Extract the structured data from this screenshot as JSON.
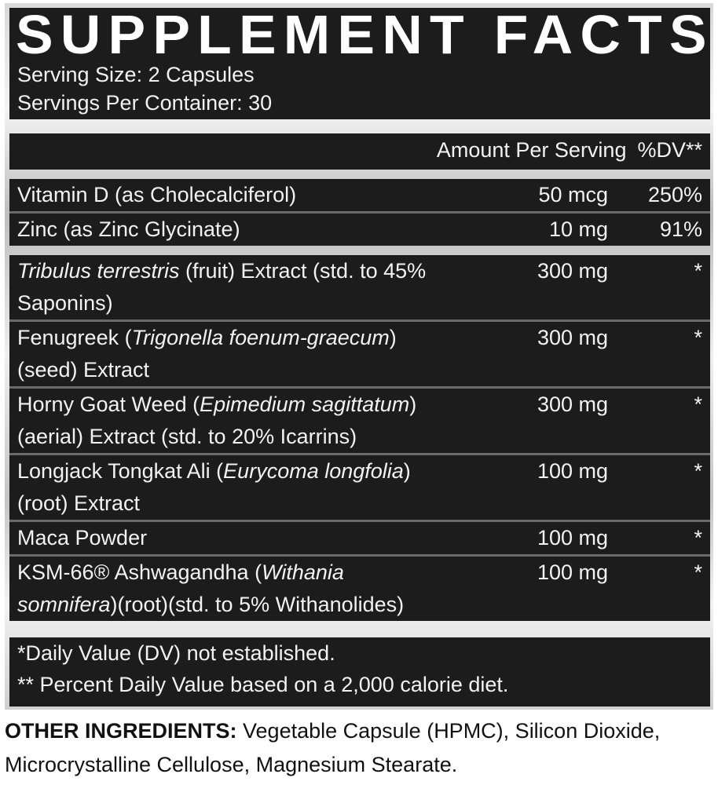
{
  "title": "SUPPLEMENT FACTS",
  "serving_size": "Serving Size: 2 Capsules",
  "servings_per_container": "Servings Per Container: 30",
  "columns": {
    "amount": "Amount Per Serving",
    "dv": "%DV**"
  },
  "vitamins": [
    {
      "name": "Vitamin D (as Cholecalciferol)",
      "amount": "50 mcg",
      "dv": "250%"
    },
    {
      "name": "Zinc (as Zinc Glycinate)",
      "amount": "10 mg",
      "dv": "91%"
    }
  ],
  "ingredients": [
    {
      "l1a": "",
      "l1i": "Tribulus terrestris",
      "l1b": " (fruit) Extract (std. to 45%",
      "l2a": "Saponins)",
      "l2i": "",
      "l2b": "",
      "amount": "300 mg",
      "dv": "*"
    },
    {
      "l1a": "Fenugreek (",
      "l1i": "Trigonella foenum-graecum",
      "l1b": ")",
      "l2a": "(seed) Extract",
      "l2i": "",
      "l2b": "",
      "amount": "300 mg",
      "dv": "*"
    },
    {
      "l1a": "Horny Goat Weed (",
      "l1i": "Epimedium sagittatum",
      "l1b": ")",
      "l2a": "(aerial) Extract (std. to 20% Icarrins)",
      "l2i": "",
      "l2b": "",
      "amount": "300 mg",
      "dv": "*"
    },
    {
      "l1a": "Longjack Tongkat Ali (",
      "l1i": "Eurycoma longfolia",
      "l1b": ")",
      "l2a": "(root) Extract",
      "l2i": "",
      "l2b": "",
      "amount": "100 mg",
      "dv": "*"
    },
    {
      "l1a": "Maca Powder",
      "l1i": "",
      "l1b": "",
      "amount": "100 mg",
      "dv": "*"
    },
    {
      "l1a": "KSM-66® Ashwagandha (",
      "l1i": "Withania",
      "l1b": "",
      "l2a": "",
      "l2i": "somnifera",
      "l2b": ")(root)(std. to 5% Withanolides)",
      "amount": "100 mg",
      "dv": "*"
    }
  ],
  "footnotes": [
    "*Daily Value (DV) not established.",
    "** Percent Daily Value based on a 2,000 calorie diet."
  ],
  "other_ingredients": {
    "label": "OTHER INGREDIENTS:",
    "text": " Vegetable Capsule (HPMC), Silicon Dioxide, Microcrystalline Cellulose, Magnesium Stearate."
  }
}
